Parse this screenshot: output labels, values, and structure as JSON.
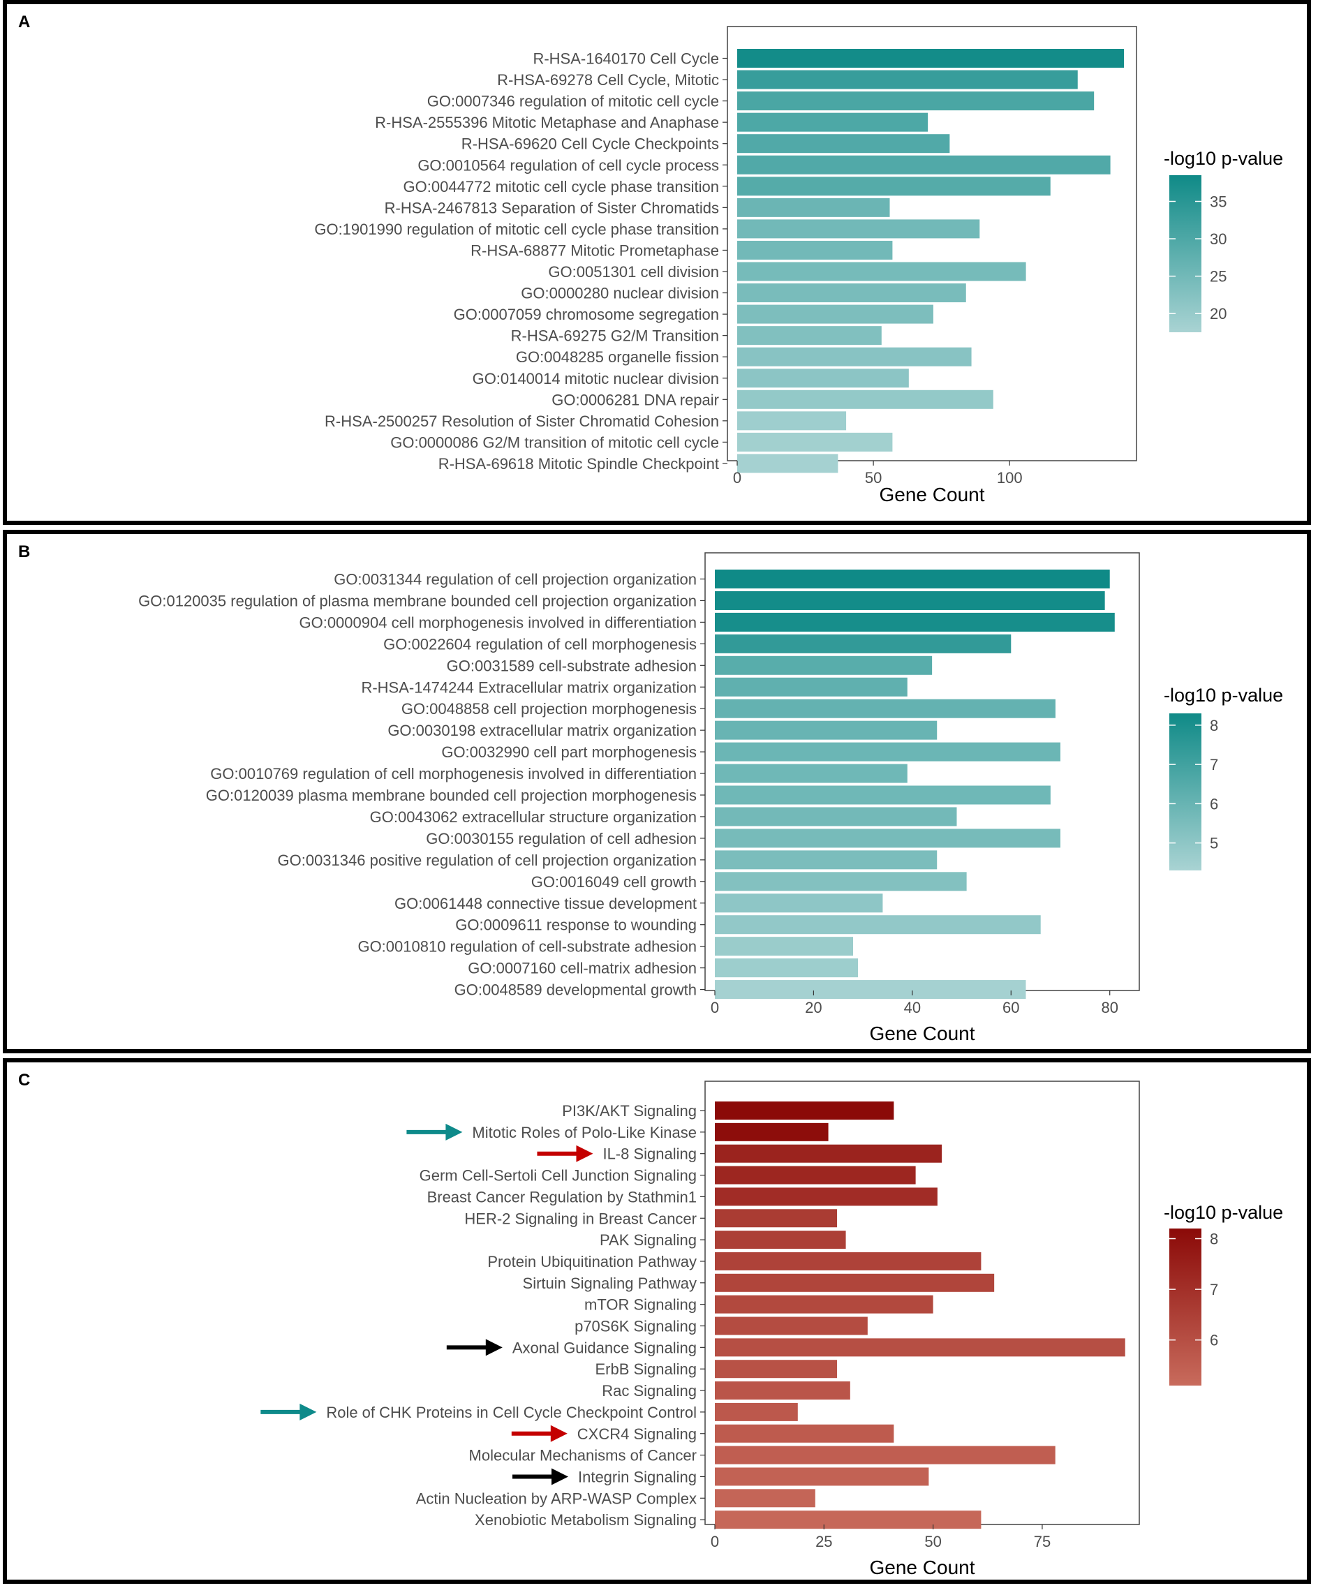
{
  "chart_data": [
    {
      "type": "bar",
      "orientation": "horizontal",
      "panel": "A",
      "xlabel": "Gene Count",
      "xlim": [
        0,
        143
      ],
      "xticks": [
        0,
        50,
        100
      ],
      "legend": {
        "title": "-log10 p-value",
        "ticks": [
          20,
          25,
          30,
          35
        ],
        "range": [
          17.5,
          38.5
        ],
        "low_color": "#a9d3d3",
        "high_color": "#0f8a87",
        "position": "right"
      },
      "categories": [
        "R-HSA-1640170 Cell Cycle",
        "R-HSA-69278 Cell Cycle, Mitotic",
        "GO:0007346 regulation of mitotic cell cycle",
        "R-HSA-2555396 Mitotic Metaphase and Anaphase",
        "R-HSA-69620 Cell Cycle Checkpoints",
        "GO:0010564 regulation of cell cycle process",
        "GO:0044772 mitotic cell cycle phase transition",
        "R-HSA-2467813 Separation of Sister Chromatids",
        "GO:1901990 regulation of mitotic cell cycle phase transition",
        "R-HSA-68877 Mitotic Prometaphase",
        "GO:0051301 cell division",
        "GO:0000280 nuclear division",
        "GO:0007059 chromosome segregation",
        "R-HSA-69275 G2/M Transition",
        "GO:0048285 organelle fission",
        "GO:0140014 mitotic nuclear division",
        "GO:0006281 DNA repair",
        "R-HSA-2500257 Resolution of Sister Chromatid Cohesion",
        "GO:0000086 G2/M transition of mitotic cell cycle",
        "R-HSA-69618 Mitotic Spindle Checkpoint"
      ],
      "values": [
        142,
        125,
        131,
        70,
        78,
        137,
        115,
        56,
        89,
        57,
        106,
        84,
        72,
        53,
        86,
        63,
        94,
        40,
        57,
        37
      ],
      "pvalues": [
        38,
        33,
        30.5,
        30,
        29.5,
        29.5,
        29,
        26,
        25,
        25,
        24.5,
        24,
        23.5,
        23,
        22,
        21.5,
        20.5,
        19,
        18.5,
        18
      ]
    },
    {
      "type": "bar",
      "orientation": "horizontal",
      "panel": "B",
      "xlabel": "Gene Count",
      "xlim": [
        0,
        84
      ],
      "xticks": [
        0,
        20,
        40,
        60,
        80
      ],
      "legend": {
        "title": "-log10 p-value",
        "ticks": [
          5,
          6,
          7,
          8
        ],
        "range": [
          4.3,
          8.3
        ],
        "low_color": "#a9d3d3",
        "high_color": "#0f8a87",
        "position": "right"
      },
      "categories": [
        "GO:0031344 regulation of cell projection organization",
        "GO:0120035 regulation of plasma membrane bounded cell projection organization",
        "GO:0000904 cell morphogenesis involved in differentiation",
        "GO:0022604 regulation of cell morphogenesis",
        "GO:0031589 cell-substrate adhesion",
        "R-HSA-1474244 Extracellular matrix organization",
        "GO:0048858 cell projection morphogenesis",
        "GO:0030198 extracellular matrix organization",
        "GO:0032990 cell part morphogenesis",
        "GO:0010769 regulation of cell morphogenesis involved in differentiation",
        "GO:0120039 plasma membrane bounded cell projection morphogenesis",
        "GO:0043062 extracellular structure organization",
        "GO:0030155 regulation of cell adhesion",
        "GO:0031346 positive regulation of cell projection organization",
        "GO:0016049 cell growth",
        "GO:0061448 connective tissue development",
        "GO:0009611 response to wounding",
        "GO:0010810 regulation of cell-substrate adhesion",
        "GO:0007160 cell-matrix adhesion",
        "GO:0048589 developmental growth"
      ],
      "values": [
        80,
        79,
        81,
        60,
        44,
        39,
        69,
        45,
        70,
        39,
        68,
        49,
        70,
        45,
        51,
        34,
        66,
        28,
        29,
        63
      ],
      "pvalues": [
        8.3,
        8.2,
        8.1,
        7.4,
        6.4,
        6.2,
        6.1,
        6.0,
        5.9,
        5.8,
        5.8,
        5.7,
        5.6,
        5.5,
        5.3,
        5.0,
        4.9,
        4.7,
        4.6,
        4.4
      ]
    },
    {
      "type": "bar",
      "orientation": "horizontal",
      "panel": "C",
      "xlabel": "Gene Count",
      "xlim": [
        0,
        95
      ],
      "xticks": [
        0,
        25,
        50,
        75
      ],
      "legend": {
        "title": "-log10 p-value",
        "ticks": [
          6,
          7,
          8
        ],
        "range": [
          5.1,
          8.2
        ],
        "low_color": "#c86b5c",
        "high_color": "#8b0a08",
        "position": "right"
      },
      "categories": [
        "PI3K/AKT Signaling",
        "Mitotic Roles of Polo-Like Kinase",
        "IL-8 Signaling",
        "Germ Cell-Sertoli Cell Junction Signaling",
        "Breast Cancer Regulation by Stathmin1",
        "HER-2 Signaling in Breast Cancer",
        "PAK Signaling",
        "Protein Ubiquitination Pathway",
        "Sirtuin Signaling Pathway",
        "mTOR Signaling",
        "p70S6K Signaling",
        "Axonal Guidance Signaling",
        "ErbB Signaling",
        "Rac Signaling",
        "Role of CHK Proteins in Cell Cycle Checkpoint Control",
        "CXCR4 Signaling",
        "Molecular Mechanisms of Cancer",
        "Integrin Signaling",
        "Actin Nucleation by ARP-WASP Complex",
        "Xenobiotic Metabolism Signaling"
      ],
      "values": [
        41,
        26,
        52,
        46,
        51,
        28,
        30,
        61,
        64,
        50,
        35,
        94,
        28,
        31,
        19,
        41,
        78,
        49,
        23,
        61
      ],
      "pvalues": [
        8.2,
        8.1,
        7.4,
        7.3,
        7.1,
        6.6,
        6.5,
        6.4,
        6.3,
        6.2,
        6.1,
        6.0,
        5.9,
        5.8,
        5.7,
        5.6,
        5.5,
        5.4,
        5.3,
        5.2
      ],
      "arrows": [
        {
          "category": "Mitotic Roles of Polo-Like Kinase",
          "color": "#0e8a8a"
        },
        {
          "category": "IL-8 Signaling",
          "color": "#c40000"
        },
        {
          "category": "Axonal Guidance Signaling",
          "color": "#000000"
        },
        {
          "category": "Role of CHK Proteins in Cell Cycle Checkpoint Control",
          "color": "#0e8a8a"
        },
        {
          "category": "CXCR4 Signaling",
          "color": "#c40000"
        },
        {
          "category": "Integrin Signaling",
          "color": "#000000"
        }
      ]
    }
  ],
  "panels": {
    "a": "A",
    "b": "B",
    "c": "C"
  }
}
